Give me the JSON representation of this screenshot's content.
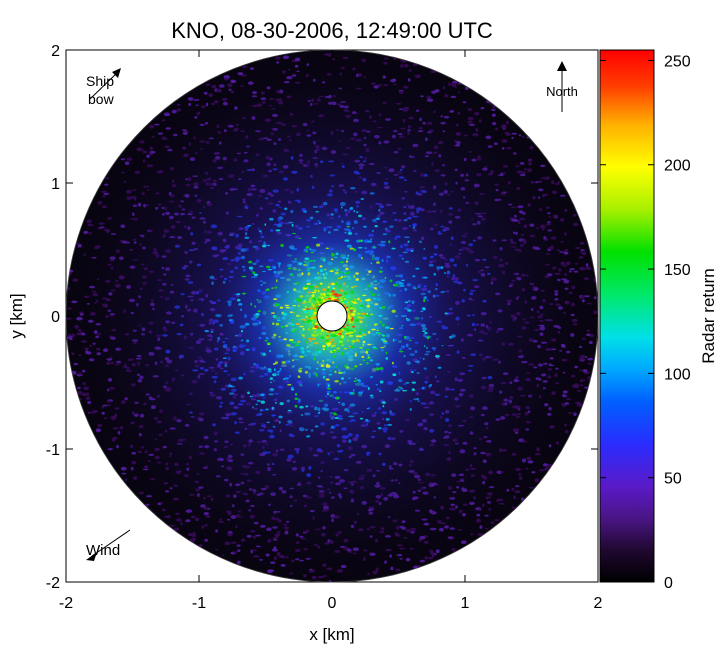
{
  "chart_data": {
    "type": "heatmap",
    "title": "KNO, 08-30-2006, 12:49:00 UTC",
    "xlabel": "x [km]",
    "ylabel": "y [km]",
    "xlim": [
      -2,
      2
    ],
    "ylim": [
      -2,
      2
    ],
    "x_ticks": [
      "-2",
      "-1",
      "0",
      "1",
      "2"
    ],
    "y_ticks": [
      "-2",
      "-1",
      "0",
      "1",
      "2"
    ],
    "colorbar": {
      "label": "Radar return",
      "range": [
        0,
        255
      ],
      "ticks": [
        "0",
        "50",
        "100",
        "150",
        "200",
        "250"
      ],
      "colormap": "rainbow",
      "stops": [
        "#000000",
        "#3a0a5a",
        "#5a1fb0",
        "#1f3cff",
        "#00a8ff",
        "#00e8e0",
        "#00e000",
        "#a8f000",
        "#ffff00",
        "#ffa000",
        "#ff3000",
        "#ff0000"
      ]
    },
    "field": {
      "center_value": 200,
      "outer_value": 30,
      "inner_blank_radius_km": 0.12,
      "outer_radius_km": 2.0
    },
    "annotations": {
      "ship_bow": "Ship\nbow",
      "north": "North",
      "wind": "Wind"
    }
  }
}
